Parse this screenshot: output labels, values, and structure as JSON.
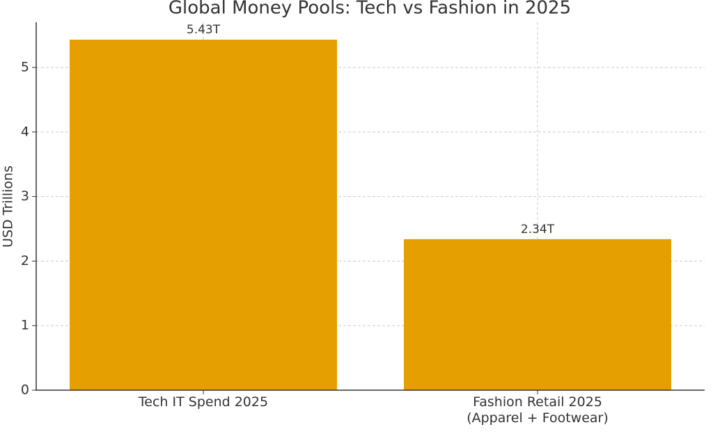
{
  "chart_data": {
    "type": "bar",
    "title": "Global Money Pools: Tech vs Fashion in 2025",
    "y_label": "USD Trillions",
    "categories": [
      "Tech IT Spend 2025",
      "Fashion Retail 2025\n(Apparel + Footwear)"
    ],
    "values": [
      5.43,
      2.34
    ],
    "value_labels": [
      "5.43T",
      "2.34T"
    ],
    "color": "#e69f00",
    "ylim": [
      0,
      5.7
    ],
    "yticks": [
      0,
      1,
      2,
      3,
      4,
      5
    ],
    "grid": true
  }
}
